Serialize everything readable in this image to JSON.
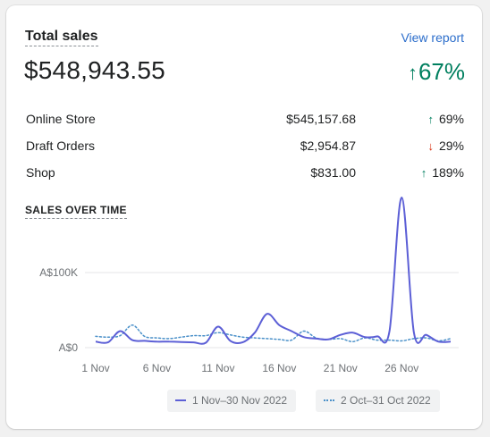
{
  "card": {
    "title": "Total sales",
    "view_report": "View report",
    "total_value": "$548,943.55",
    "total_change_arrow": "↑",
    "total_change": "67%"
  },
  "breakdown": [
    {
      "name": "Online Store",
      "value": "$545,157.68",
      "arrow": "↑",
      "direction": "up",
      "change": "69%"
    },
    {
      "name": "Draft Orders",
      "value": "$2,954.87",
      "arrow": "↓",
      "direction": "down",
      "change": "29%"
    },
    {
      "name": "Shop",
      "value": "$831.00",
      "arrow": "↑",
      "direction": "up",
      "change": "189%"
    }
  ],
  "chart_section_title": "SALES OVER TIME",
  "colors": {
    "accent": "#2c6ecb",
    "positive": "#007f5f",
    "negative": "#d72c0d",
    "current_series": "#5c5fd6",
    "previous_series": "#4a90c9"
  },
  "chart_data": {
    "type": "line",
    "ylabel": "",
    "xlabel": "",
    "y_ticks": [
      "A$0",
      "A$100K"
    ],
    "y_tick_values": [
      0,
      100000
    ],
    "ylim": [
      0,
      210000
    ],
    "x_ticks": [
      "1 Nov",
      "6 Nov",
      "11 Nov",
      "16 Nov",
      "21 Nov",
      "26 Nov"
    ],
    "x_tick_days": [
      1,
      6,
      11,
      16,
      21,
      26
    ],
    "grid": true,
    "legend_position": "bottom",
    "series": [
      {
        "name": "1 Nov–30 Nov 2022",
        "style": "solid",
        "x": [
          1,
          2,
          3,
          4,
          5,
          6,
          7,
          8,
          9,
          10,
          11,
          12,
          13,
          14,
          15,
          16,
          17,
          18,
          19,
          20,
          21,
          22,
          23,
          24,
          25,
          26,
          27,
          28,
          29,
          30
        ],
        "values": [
          8000,
          7000,
          22000,
          10000,
          9000,
          8000,
          8000,
          7500,
          7000,
          6500,
          28000,
          9000,
          7000,
          20000,
          45000,
          30000,
          22000,
          14000,
          12000,
          11000,
          17000,
          20000,
          14000,
          15000,
          22000,
          200000,
          20000,
          17000,
          8000,
          8000
        ]
      },
      {
        "name": "2 Oct–31 Oct 2022",
        "style": "dotted",
        "x": [
          1,
          2,
          3,
          4,
          5,
          6,
          7,
          8,
          9,
          10,
          11,
          12,
          13,
          14,
          15,
          16,
          17,
          18,
          19,
          20,
          21,
          22,
          23,
          24,
          25,
          26,
          27,
          28,
          29,
          30
        ],
        "values": [
          15000,
          14000,
          16000,
          30000,
          15000,
          13000,
          12000,
          14000,
          16000,
          16000,
          20000,
          17000,
          14000,
          13000,
          12000,
          11000,
          10000,
          22000,
          13000,
          11000,
          12000,
          8000,
          13000,
          10000,
          10000,
          9000,
          12000,
          13000,
          9000,
          12000
        ]
      }
    ]
  }
}
